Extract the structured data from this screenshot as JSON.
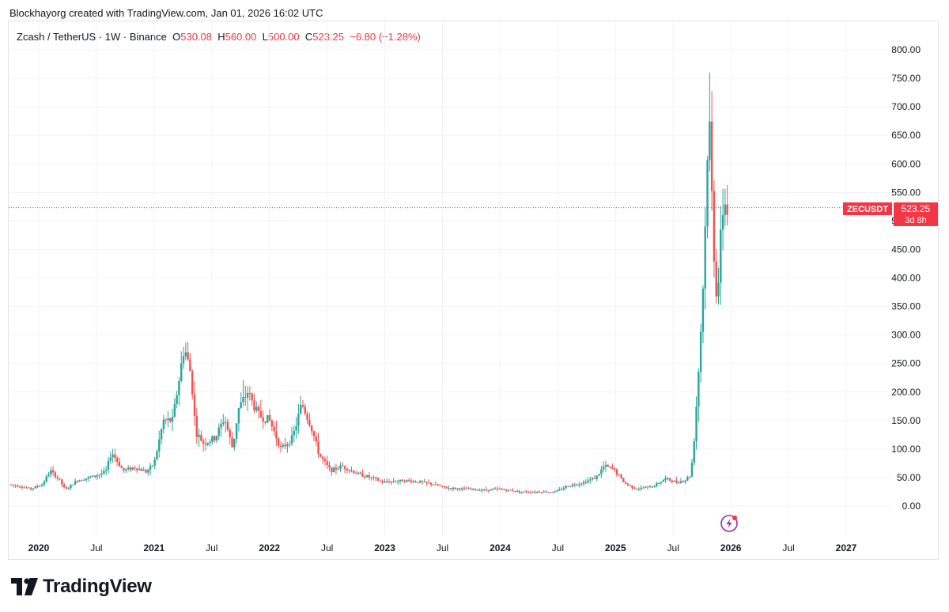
{
  "header": {
    "created_by": "Blockhayorg created with TradingView.com, Jan 01, 2026 16:02 UTC"
  },
  "symbol": {
    "name": "Zcash / TetherUS",
    "sep1": "·",
    "interval": "1W",
    "sep2": "·",
    "exchange": "Binance",
    "o_label": "O",
    "open": "530.08",
    "h_label": "H",
    "high": "560.00",
    "l_label": "L",
    "low": "500.00",
    "c_label": "C",
    "close": "523.25",
    "change": "−6.80 (−1.28%)"
  },
  "price_tag": {
    "ticker": "ZECUSDT",
    "price": "523.25",
    "countdown": "3d 8h"
  },
  "brand": {
    "name": "TradingView"
  },
  "colors": {
    "up": "#26a69a",
    "down": "#ef5350",
    "grid": "#f0f3fa",
    "axis_text": "#131722",
    "price_line": "#f23645",
    "lightning": "#9c27b0"
  },
  "chart_data": {
    "type": "candlestick",
    "title": "Zcash / TetherUS · 1W · Binance",
    "x_ticks": [
      "2020",
      "Jul",
      "2021",
      "Jul",
      "2022",
      "Jul",
      "2023",
      "Jul",
      "2024",
      "Jul",
      "2025",
      "Jul",
      "2026",
      "Jul",
      "2027"
    ],
    "x_tick_years": [
      2020.0,
      2020.5,
      2021.0,
      2021.5,
      2022.0,
      2022.5,
      2023.0,
      2023.5,
      2024.0,
      2024.5,
      2025.0,
      2025.5,
      2026.0,
      2026.5,
      2027.0
    ],
    "x_range": [
      2019.75,
      2027.25
    ],
    "y_ticks": [
      "800.00",
      "750.00",
      "700.00",
      "650.00",
      "600.00",
      "550.00",
      "500.00",
      "450.00",
      "400.00",
      "350.00",
      "300.00",
      "250.00",
      "200.00",
      "150.00",
      "100.00",
      "50.00",
      "0.00"
    ],
    "y_range": [
      -10,
      820
    ],
    "last_price": 523.25,
    "grid": true,
    "anchors": [
      [
        2019.76,
        38
      ],
      [
        2019.85,
        35
      ],
      [
        2019.95,
        30
      ],
      [
        2020.05,
        38
      ],
      [
        2020.12,
        62
      ],
      [
        2020.2,
        45
      ],
      [
        2020.25,
        28
      ],
      [
        2020.35,
        45
      ],
      [
        2020.5,
        52
      ],
      [
        2020.6,
        60
      ],
      [
        2020.65,
        95
      ],
      [
        2020.75,
        62
      ],
      [
        2020.85,
        68
      ],
      [
        2020.95,
        60
      ],
      [
        2021.02,
        75
      ],
      [
        2021.1,
        150
      ],
      [
        2021.18,
        150
      ],
      [
        2021.28,
        280
      ],
      [
        2021.34,
        230
      ],
      [
        2021.38,
        130
      ],
      [
        2021.45,
        110
      ],
      [
        2021.55,
        120
      ],
      [
        2021.63,
        155
      ],
      [
        2021.7,
        100
      ],
      [
        2021.75,
        170
      ],
      [
        2021.83,
        200
      ],
      [
        2021.92,
        160
      ],
      [
        2022.02,
        150
      ],
      [
        2022.12,
        100
      ],
      [
        2022.22,
        120
      ],
      [
        2022.3,
        180
      ],
      [
        2022.38,
        140
      ],
      [
        2022.45,
        90
      ],
      [
        2022.55,
        62
      ],
      [
        2022.65,
        70
      ],
      [
        2022.8,
        55
      ],
      [
        2022.9,
        50
      ],
      [
        2023.0,
        42
      ],
      [
        2023.2,
        45
      ],
      [
        2023.4,
        40
      ],
      [
        2023.55,
        32
      ],
      [
        2023.7,
        30
      ],
      [
        2023.9,
        28
      ],
      [
        2024.0,
        30
      ],
      [
        2024.2,
        25
      ],
      [
        2024.5,
        25
      ],
      [
        2024.6,
        35
      ],
      [
        2024.75,
        42
      ],
      [
        2024.85,
        50
      ],
      [
        2024.92,
        70
      ],
      [
        2025.0,
        65
      ],
      [
        2025.1,
        40
      ],
      [
        2025.2,
        30
      ],
      [
        2025.35,
        35
      ],
      [
        2025.45,
        48
      ],
      [
        2025.55,
        42
      ],
      [
        2025.62,
        45
      ],
      [
        2025.67,
        55
      ],
      [
        2025.69,
        90
      ],
      [
        2025.71,
        140
      ],
      [
        2025.73,
        210
      ],
      [
        2025.75,
        270
      ],
      [
        2025.77,
        360
      ],
      [
        2025.79,
        430
      ],
      [
        2025.81,
        600
      ],
      [
        2025.83,
        690
      ],
      [
        2025.85,
        580
      ],
      [
        2025.86,
        500
      ],
      [
        2025.88,
        420
      ],
      [
        2025.9,
        360
      ],
      [
        2025.92,
        420
      ],
      [
        2025.94,
        500
      ],
      [
        2025.96,
        540
      ],
      [
        2025.98,
        523
      ]
    ]
  }
}
